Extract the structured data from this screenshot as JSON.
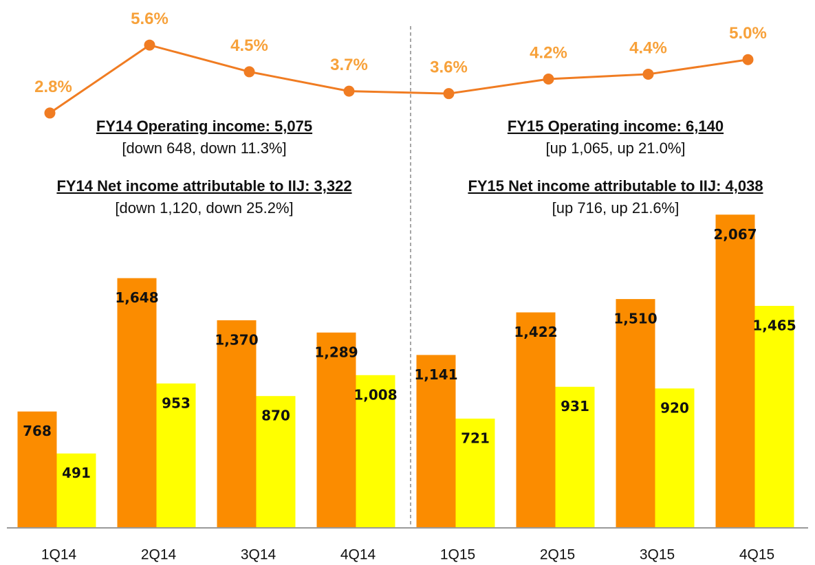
{
  "chart_data": {
    "type": "bar",
    "categories": [
      "1Q14",
      "2Q14",
      "3Q14",
      "4Q14",
      "1Q15",
      "2Q15",
      "3Q15",
      "4Q15"
    ],
    "series": [
      {
        "color": "#fb8c00",
        "values": [
          768,
          1648,
          1370,
          1289,
          1141,
          1422,
          1510,
          2067
        ],
        "value_labels": [
          "768",
          "1,648",
          "1,370",
          "1,289",
          "1,141",
          "1,422",
          "1,510",
          "2,067"
        ]
      },
      {
        "color": "#ffff00",
        "values": [
          491,
          953,
          870,
          1008,
          721,
          931,
          920,
          1465
        ],
        "value_labels": [
          "491",
          "953",
          "870",
          "1,008",
          "721",
          "931",
          "920",
          "1,465"
        ]
      },
      {
        "type": "line",
        "axis": "y2",
        "color": "#f07c22",
        "label_color": "#f7a13a",
        "values": [
          2.8,
          5.6,
          4.5,
          3.7,
          3.6,
          4.2,
          4.4,
          5.0
        ],
        "value_labels": [
          "2.8%",
          "5.6%",
          "4.5%",
          "3.7%",
          "3.6%",
          "4.2%",
          "4.4%",
          "5.0%"
        ]
      }
    ],
    "ylim": [
      0,
      2100
    ],
    "y2lim": [
      2.5,
      5.9
    ],
    "annotations": [
      "FY14 Operating income: 5,075",
      "[down 648, down 11.3%]",
      "FY14 Net income attributable to IIJ: 3,322",
      "[down 1,120, down 25.2%]",
      "FY15 Operating income: 6,140",
      "[up 1,065, up 21.0%]",
      "FY15 Net income attributable to IIJ: 4,038",
      "[up 716, up 21.6%]"
    ]
  }
}
